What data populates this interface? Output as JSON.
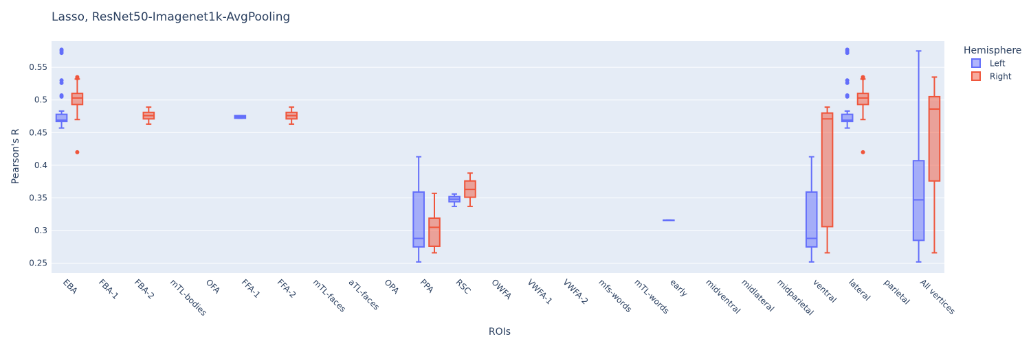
{
  "chart_data": {
    "type": "box",
    "title": "Lasso, ResNet50-Imagenet1k-AvgPooling",
    "xlabel": "ROIs",
    "ylabel": "Pearson's R",
    "ylim": [
      0.235,
      0.59
    ],
    "yticks": [
      0.25,
      0.3,
      0.35,
      0.4,
      0.45,
      0.5,
      0.55
    ],
    "ytick_labels": [
      "0.25",
      "0.3",
      "0.35",
      "0.4",
      "0.45",
      "0.5",
      "0.55"
    ],
    "grid": true,
    "legend_title": "Hemisphere",
    "legend_position": "right",
    "categories": [
      "EBA",
      "FBA-1",
      "FBA-2",
      "mTL-bodies",
      "OFA",
      "FFA-1",
      "FFA-2",
      "mTL-faces",
      "aTL-faces",
      "OPA",
      "PPA",
      "RSC",
      "OWFA",
      "VWFA-1",
      "VWFA-2",
      "mfs-words",
      "mTL-words",
      "early",
      "midventral",
      "midlateral",
      "midparietal",
      "ventral",
      "lateral",
      "parietal",
      "All vertices"
    ],
    "series": [
      {
        "name": "Left",
        "color": "#636efa",
        "fill": "rgba(99,110,250,0.5)",
        "boxes": [
          {
            "category": "EBA",
            "min": 0.457,
            "q1": 0.467,
            "median": 0.469,
            "q3": 0.478,
            "max": 0.483,
            "outliers": [
              0.505,
              0.507,
              0.526,
              0.53,
              0.572,
              0.575,
              0.577
            ]
          },
          {
            "category": "FFA-1",
            "min": 0.472,
            "q1": 0.472,
            "median": 0.474,
            "q3": 0.476,
            "max": 0.476,
            "outliers": []
          },
          {
            "category": "PPA",
            "min": 0.252,
            "q1": 0.275,
            "median": 0.288,
            "q3": 0.359,
            "max": 0.413,
            "outliers": []
          },
          {
            "category": "RSC",
            "min": 0.337,
            "q1": 0.344,
            "median": 0.348,
            "q3": 0.352,
            "max": 0.356,
            "outliers": []
          },
          {
            "category": "early",
            "min": 0.316,
            "q1": 0.316,
            "median": 0.316,
            "q3": 0.316,
            "max": 0.316,
            "outliers": []
          },
          {
            "category": "ventral",
            "min": 0.252,
            "q1": 0.275,
            "median": 0.288,
            "q3": 0.359,
            "max": 0.413,
            "outliers": []
          },
          {
            "category": "lateral",
            "min": 0.457,
            "q1": 0.467,
            "median": 0.469,
            "q3": 0.478,
            "max": 0.483,
            "outliers": [
              0.505,
              0.507,
              0.526,
              0.53,
              0.572,
              0.575,
              0.577
            ]
          },
          {
            "category": "All vertices",
            "min": 0.252,
            "q1": 0.285,
            "median": 0.347,
            "q3": 0.407,
            "max": 0.575,
            "outliers": []
          }
        ]
      },
      {
        "name": "Right",
        "color": "#ef553b",
        "fill": "rgba(239,85,59,0.5)",
        "boxes": [
          {
            "category": "EBA",
            "min": 0.47,
            "q1": 0.493,
            "median": 0.503,
            "q3": 0.51,
            "max": 0.532,
            "outliers": [
              0.42,
              0.533,
              0.535
            ]
          },
          {
            "category": "FBA-2",
            "min": 0.463,
            "q1": 0.471,
            "median": 0.476,
            "q3": 0.481,
            "max": 0.489,
            "outliers": []
          },
          {
            "category": "FFA-2",
            "min": 0.463,
            "q1": 0.471,
            "median": 0.476,
            "q3": 0.481,
            "max": 0.489,
            "outliers": []
          },
          {
            "category": "PPA",
            "min": 0.266,
            "q1": 0.276,
            "median": 0.305,
            "q3": 0.319,
            "max": 0.357,
            "outliers": []
          },
          {
            "category": "RSC",
            "min": 0.337,
            "q1": 0.351,
            "median": 0.363,
            "q3": 0.376,
            "max": 0.388,
            "outliers": []
          },
          {
            "category": "ventral",
            "min": 0.266,
            "q1": 0.306,
            "median": 0.471,
            "q3": 0.48,
            "max": 0.489,
            "outliers": []
          },
          {
            "category": "lateral",
            "min": 0.47,
            "q1": 0.493,
            "median": 0.503,
            "q3": 0.51,
            "max": 0.532,
            "outliers": [
              0.42,
              0.533,
              0.535
            ]
          },
          {
            "category": "All vertices",
            "min": 0.266,
            "q1": 0.376,
            "median": 0.486,
            "q3": 0.505,
            "max": 0.535,
            "outliers": []
          }
        ]
      }
    ]
  }
}
